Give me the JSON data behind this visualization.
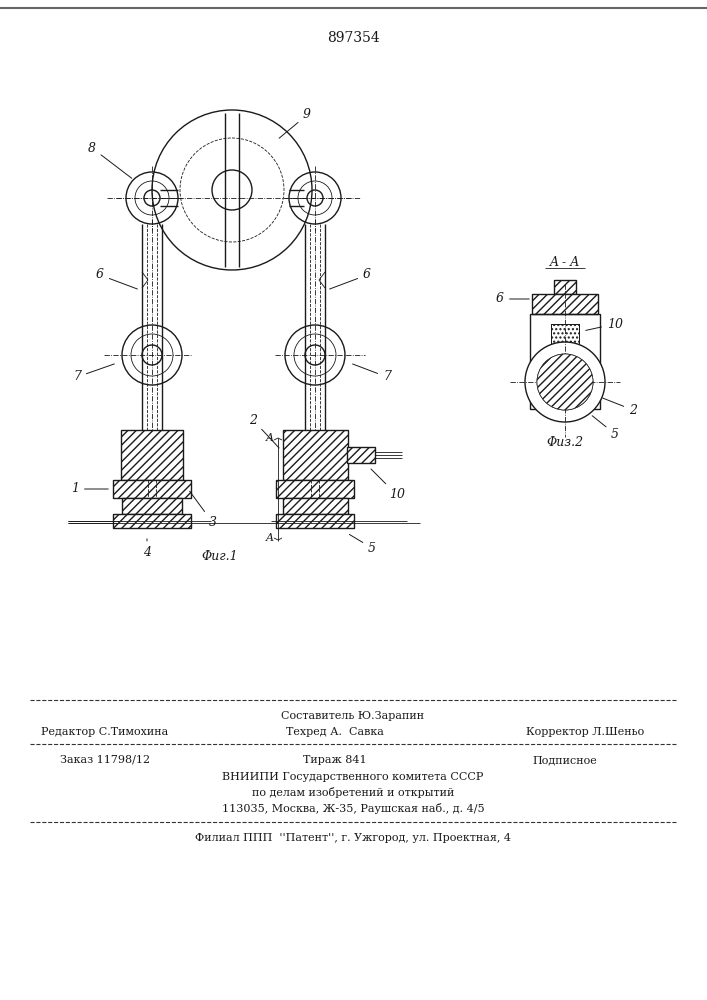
{
  "patent_number": "897354",
  "background_color": "#ffffff",
  "line_color": "#1a1a1a",
  "fig1_caption": "Φиг.1",
  "fig2_caption": "Φиз.2",
  "footer_editor": "Редактор С.Тимохина",
  "footer_composer": "Составитель Ю.Зарапин",
  "footer_techred": "Техред А.  Савка",
  "footer_corrector": "Корректор Л.Шеньо",
  "footer_order": "Заказ 11798/12",
  "footer_tirazh": "Тираж 841",
  "footer_podpisnoe": "Подписное",
  "footer_vniipи": "ВНИИПИ Государственного комитета СССР",
  "footer_po_delam": "по делам изобретений и открытий",
  "footer_address": "113035, Москва, Ж-35, Раушская наб., д. 4/5",
  "footer_filial": "Филиал ППП  ''Патент'', г. Ужгород, ул. Проектная, 4"
}
